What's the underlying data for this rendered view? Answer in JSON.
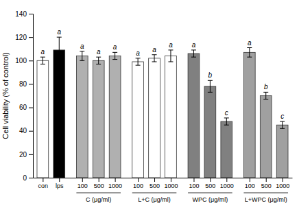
{
  "chart_data": {
    "type": "bar",
    "ylabel": "Cell viability (% of control)",
    "categories": [
      "con",
      "lps",
      "100",
      "500",
      "1000",
      "100",
      "500",
      "1000",
      "100",
      "500",
      "1000",
      "100",
      "500",
      "1000"
    ],
    "values": [
      100,
      109,
      104,
      100,
      104,
      99,
      102,
      104,
      106,
      78,
      48,
      107,
      70,
      45
    ],
    "errors": [
      3,
      11,
      4,
      3,
      3,
      3,
      3,
      5,
      3,
      5,
      3,
      4,
      3,
      3
    ],
    "letters": [
      "a",
      "a",
      "a",
      "a",
      "a",
      "a",
      "a",
      "a",
      "a",
      "b",
      "c",
      "a",
      "b",
      "c"
    ],
    "colors": [
      "white",
      "black",
      "#b0b0b0",
      "#b0b0b0",
      "#b0b0b0",
      "white",
      "white",
      "white",
      "#808080",
      "#808080",
      "#808080",
      "#a0a0a0",
      "#a0a0a0",
      "#a0a0a0"
    ],
    "group_labels": [
      {
        "text": "C (μg/ml)",
        "start": 2,
        "end": 4
      },
      {
        "text": "L+C (μg/ml)",
        "start": 5,
        "end": 7
      },
      {
        "text": "WPC (μg/ml)",
        "start": 8,
        "end": 10
      },
      {
        "text": "L+WPC (μg/ml)",
        "start": 11,
        "end": 13
      }
    ],
    "ylim": [
      0,
      140
    ],
    "yticks": [
      0,
      20,
      40,
      60,
      80,
      100,
      120,
      140
    ],
    "grid": false
  }
}
